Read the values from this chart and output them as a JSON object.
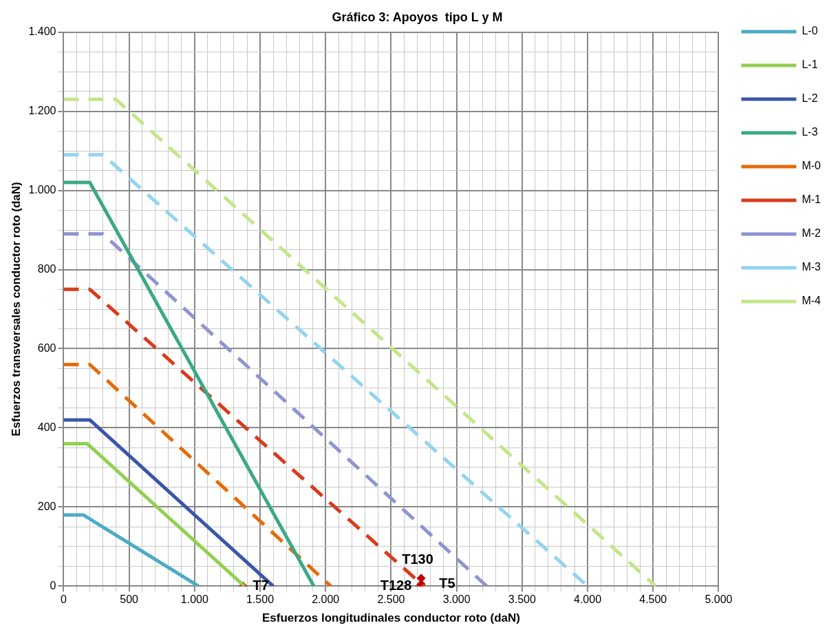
{
  "chart_data": {
    "type": "line",
    "title": "Gráfico 3: Apoyos  tipo L y M",
    "xlabel": "Esfuerzos longitudinales conductor roto (daN)",
    "ylabel": "Esfuerzos transversales conductor roto (daN)",
    "xlim": [
      0,
      5000
    ],
    "ylim": [
      0,
      1400
    ],
    "xticks": [
      {
        "value": 0,
        "label": "0"
      },
      {
        "value": 100,
        "label": null
      },
      {
        "value": 200,
        "label": null
      },
      {
        "value": 300,
        "label": null
      },
      {
        "value": 400,
        "label": null
      },
      {
        "value": 500,
        "label": "500"
      },
      {
        "value": 600,
        "label": null
      },
      {
        "value": 700,
        "label": null
      },
      {
        "value": 800,
        "label": null
      },
      {
        "value": 900,
        "label": null
      },
      {
        "value": 1000,
        "label": "1.000"
      },
      {
        "value": 1100,
        "label": null
      },
      {
        "value": 1200,
        "label": null
      },
      {
        "value": 1300,
        "label": null
      },
      {
        "value": 1400,
        "label": null
      },
      {
        "value": 1500,
        "label": "1.500"
      },
      {
        "value": 1600,
        "label": null
      },
      {
        "value": 1700,
        "label": null
      },
      {
        "value": 1800,
        "label": null
      },
      {
        "value": 1900,
        "label": null
      },
      {
        "value": 2000,
        "label": "2.000"
      },
      {
        "value": 2100,
        "label": null
      },
      {
        "value": 2200,
        "label": null
      },
      {
        "value": 2300,
        "label": null
      },
      {
        "value": 2400,
        "label": null
      },
      {
        "value": 2500,
        "label": "2.500"
      },
      {
        "value": 2600,
        "label": null
      },
      {
        "value": 2700,
        "label": null
      },
      {
        "value": 2800,
        "label": null
      },
      {
        "value": 2900,
        "label": null
      },
      {
        "value": 3000,
        "label": "3.000"
      },
      {
        "value": 3100,
        "label": null
      },
      {
        "value": 3200,
        "label": null
      },
      {
        "value": 3300,
        "label": null
      },
      {
        "value": 3400,
        "label": null
      },
      {
        "value": 3500,
        "label": "3.500"
      },
      {
        "value": 3600,
        "label": null
      },
      {
        "value": 3700,
        "label": null
      },
      {
        "value": 3800,
        "label": null
      },
      {
        "value": 3900,
        "label": null
      },
      {
        "value": 4000,
        "label": "4.000"
      },
      {
        "value": 4100,
        "label": null
      },
      {
        "value": 4200,
        "label": null
      },
      {
        "value": 4300,
        "label": null
      },
      {
        "value": 4400,
        "label": null
      },
      {
        "value": 4500,
        "label": "4.500"
      },
      {
        "value": 4600,
        "label": null
      },
      {
        "value": 4700,
        "label": null
      },
      {
        "value": 4800,
        "label": null
      },
      {
        "value": 4900,
        "label": null
      },
      {
        "value": 5000,
        "label": "5.000"
      }
    ],
    "yticks": [
      {
        "value": 0,
        "label": "0"
      },
      {
        "value": 50,
        "label": null
      },
      {
        "value": 100,
        "label": null
      },
      {
        "value": 150,
        "label": null
      },
      {
        "value": 200,
        "label": "200"
      },
      {
        "value": 250,
        "label": null
      },
      {
        "value": 300,
        "label": null
      },
      {
        "value": 350,
        "label": null
      },
      {
        "value": 400,
        "label": "400"
      },
      {
        "value": 450,
        "label": null
      },
      {
        "value": 500,
        "label": null
      },
      {
        "value": 550,
        "label": null
      },
      {
        "value": 600,
        "label": "600"
      },
      {
        "value": 650,
        "label": null
      },
      {
        "value": 700,
        "label": null
      },
      {
        "value": 750,
        "label": null
      },
      {
        "value": 800,
        "label": "800"
      },
      {
        "value": 850,
        "label": null
      },
      {
        "value": 900,
        "label": null
      },
      {
        "value": 950,
        "label": null
      },
      {
        "value": 1000,
        "label": "1.000"
      },
      {
        "value": 1050,
        "label": null
      },
      {
        "value": 1100,
        "label": null
      },
      {
        "value": 1150,
        "label": null
      },
      {
        "value": 1200,
        "label": "1.200"
      },
      {
        "value": 1250,
        "label": null
      },
      {
        "value": 1300,
        "label": null
      },
      {
        "value": 1350,
        "label": null
      },
      {
        "value": 1400,
        "label": "1.400"
      }
    ],
    "grid": true,
    "legend": "right",
    "marker": "none",
    "series": [
      {
        "name": "L-0",
        "color": "#4bacc6",
        "line_style": "solid",
        "x": [
          0,
          150,
          1030
        ],
        "values": [
          180,
          180,
          0
        ]
      },
      {
        "name": "L-1",
        "color": "#92d050",
        "line_style": "solid",
        "x": [
          0,
          180,
          1380
        ],
        "values": [
          360,
          360,
          0
        ]
      },
      {
        "name": "L-2",
        "color": "#3a56a8",
        "line_style": "solid",
        "x": [
          0,
          200,
          1600
        ],
        "values": [
          420,
          420,
          0
        ]
      },
      {
        "name": "L-3",
        "color": "#3aa985",
        "line_style": "solid",
        "x": [
          0,
          200,
          1910
        ],
        "values": [
          1020,
          1020,
          0
        ]
      },
      {
        "name": "M-0",
        "color": "#e46c0a",
        "line_style": "dashed",
        "x": [
          0,
          200,
          2040
        ],
        "values": [
          560,
          560,
          0
        ]
      },
      {
        "name": "M-1",
        "color": "#d83b1c",
        "line_style": "dashed",
        "x": [
          0,
          200,
          2750
        ],
        "values": [
          750,
          750,
          0
        ]
      },
      {
        "name": "M-2",
        "color": "#8e95d0",
        "line_style": "dashed",
        "x": [
          0,
          300,
          3230
        ],
        "values": [
          890,
          890,
          0
        ]
      },
      {
        "name": "M-3",
        "color": "#93d4f0",
        "line_style": "dashed",
        "x": [
          0,
          300,
          4000
        ],
        "values": [
          1090,
          1090,
          0
        ]
      },
      {
        "name": "M-4",
        "color": "#c3e68a",
        "line_style": "dashed",
        "x": [
          0,
          400,
          4520
        ],
        "values": [
          1230,
          1230,
          0
        ]
      },
      {
        "type": "scatter",
        "color": "#c00000",
        "marker": "diamond",
        "x": [
          1370,
          2730,
          2720,
          2730
        ],
        "values": [
          0,
          20,
          0,
          5
        ]
      }
    ],
    "annotations": [
      {
        "text": "T7",
        "x": 1370,
        "y": 0
      },
      {
        "text": "T130",
        "x": 2730,
        "y": 20
      },
      {
        "text": "T128",
        "x": 2720,
        "y": 0
      },
      {
        "text": "T5",
        "x": 2730,
        "y": 5
      }
    ]
  }
}
